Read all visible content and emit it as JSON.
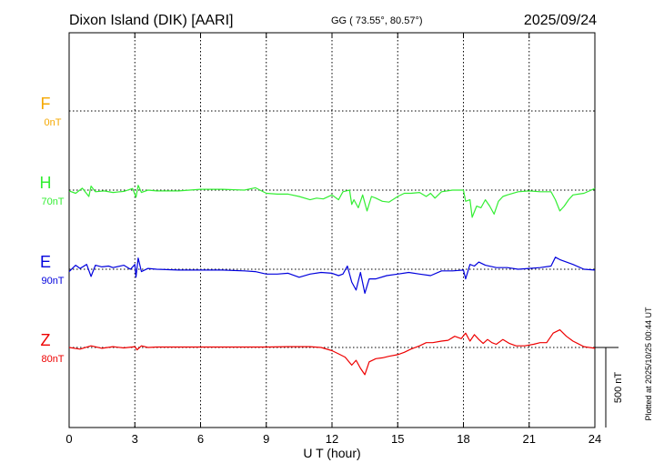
{
  "header": {
    "station": "Dixon Island (DIK)  [AARI]",
    "coords": "GG ( 73.55°,  80.57°)",
    "date": "2025/09/24"
  },
  "footer": {
    "plotted": "Plotted at 2025/10/25 00:44 UT"
  },
  "chart_data": {
    "type": "line",
    "title": "Dixon Island (DIK)  [AARI]",
    "xlabel": "U T (hour)",
    "xlim": [
      0,
      24
    ],
    "xticks": [
      "0",
      "3",
      "6",
      "9",
      "12",
      "15",
      "18",
      "21",
      "24"
    ],
    "grid": true,
    "scale_bar": "500 nT",
    "series": [
      {
        "name": "F",
        "baseline": "0nT",
        "color": "#f5a800",
        "points": []
      },
      {
        "name": "H",
        "baseline": "70nT",
        "color": "#33ee33",
        "points": [
          [
            0,
            -5
          ],
          [
            0.3,
            -20
          ],
          [
            0.6,
            12
          ],
          [
            0.9,
            -40
          ],
          [
            1.0,
            25
          ],
          [
            1.2,
            -10
          ],
          [
            1.6,
            -5
          ],
          [
            2.0,
            -15
          ],
          [
            2.5,
            -8
          ],
          [
            2.9,
            10
          ],
          [
            3.05,
            -45
          ],
          [
            3.15,
            30
          ],
          [
            3.3,
            -15
          ],
          [
            3.6,
            0
          ],
          [
            4.0,
            -5
          ],
          [
            5.0,
            -5
          ],
          [
            6.0,
            5
          ],
          [
            7.0,
            5
          ],
          [
            8.0,
            0
          ],
          [
            8.5,
            15
          ],
          [
            9.0,
            -20
          ],
          [
            9.5,
            -25
          ],
          [
            10.0,
            -25
          ],
          [
            10.5,
            -40
          ],
          [
            11.0,
            -60
          ],
          [
            11.3,
            -50
          ],
          [
            11.6,
            -55
          ],
          [
            12.0,
            -30
          ],
          [
            12.3,
            -60
          ],
          [
            12.5,
            -10
          ],
          [
            12.8,
            0
          ],
          [
            12.9,
            -90
          ],
          [
            13.0,
            -60
          ],
          [
            13.2,
            -110
          ],
          [
            13.4,
            -30
          ],
          [
            13.6,
            -130
          ],
          [
            13.8,
            -40
          ],
          [
            14.0,
            -50
          ],
          [
            14.3,
            -70
          ],
          [
            14.6,
            -75
          ],
          [
            15.0,
            -40
          ],
          [
            15.3,
            -20
          ],
          [
            15.6,
            -20
          ],
          [
            16.0,
            -15
          ],
          [
            16.3,
            -40
          ],
          [
            16.5,
            -20
          ],
          [
            16.7,
            -50
          ],
          [
            17.0,
            -10
          ],
          [
            17.5,
            0
          ],
          [
            18.0,
            0
          ],
          [
            18.1,
            -70
          ],
          [
            18.3,
            -60
          ],
          [
            18.4,
            -170
          ],
          [
            18.6,
            -100
          ],
          [
            18.8,
            -110
          ],
          [
            19.0,
            -60
          ],
          [
            19.2,
            -100
          ],
          [
            19.4,
            -150
          ],
          [
            19.6,
            -70
          ],
          [
            19.8,
            -40
          ],
          [
            20.0,
            -30
          ],
          [
            20.5,
            -10
          ],
          [
            21.0,
            -5
          ],
          [
            21.5,
            -10
          ],
          [
            22.0,
            -10
          ],
          [
            22.2,
            -60
          ],
          [
            22.4,
            -130
          ],
          [
            22.6,
            -100
          ],
          [
            22.8,
            -60
          ],
          [
            23.0,
            -30
          ],
          [
            23.5,
            -20
          ],
          [
            24.0,
            10
          ]
        ]
      },
      {
        "name": "E",
        "baseline": "90nT",
        "color": "#0000dd",
        "points": [
          [
            0,
            -15
          ],
          [
            0.3,
            25
          ],
          [
            0.5,
            5
          ],
          [
            0.8,
            30
          ],
          [
            1.0,
            -45
          ],
          [
            1.2,
            25
          ],
          [
            1.5,
            15
          ],
          [
            1.8,
            20
          ],
          [
            2.0,
            10
          ],
          [
            2.5,
            25
          ],
          [
            2.8,
            0
          ],
          [
            3.0,
            30
          ],
          [
            3.05,
            -50
          ],
          [
            3.15,
            70
          ],
          [
            3.3,
            -15
          ],
          [
            3.6,
            5
          ],
          [
            4.0,
            0
          ],
          [
            5.0,
            -5
          ],
          [
            6.0,
            -5
          ],
          [
            7.0,
            -5
          ],
          [
            8.0,
            -10
          ],
          [
            8.5,
            -15
          ],
          [
            9.0,
            -30
          ],
          [
            9.5,
            -30
          ],
          [
            10.0,
            -25
          ],
          [
            10.5,
            -50
          ],
          [
            11.0,
            -30
          ],
          [
            11.5,
            -20
          ],
          [
            12.0,
            -25
          ],
          [
            12.3,
            -40
          ],
          [
            12.5,
            -30
          ],
          [
            12.7,
            20
          ],
          [
            12.9,
            -80
          ],
          [
            13.1,
            -130
          ],
          [
            13.3,
            -20
          ],
          [
            13.5,
            -150
          ],
          [
            13.7,
            -60
          ],
          [
            14.0,
            -60
          ],
          [
            14.5,
            -40
          ],
          [
            15.0,
            -30
          ],
          [
            15.5,
            -20
          ],
          [
            16.0,
            -30
          ],
          [
            16.5,
            -40
          ],
          [
            17.0,
            -10
          ],
          [
            17.5,
            -10
          ],
          [
            18.0,
            -5
          ],
          [
            18.1,
            -60
          ],
          [
            18.3,
            30
          ],
          [
            18.5,
            20
          ],
          [
            18.7,
            45
          ],
          [
            19.0,
            25
          ],
          [
            19.5,
            10
          ],
          [
            20.0,
            10
          ],
          [
            20.5,
            0
          ],
          [
            21.0,
            5
          ],
          [
            21.5,
            10
          ],
          [
            22.0,
            20
          ],
          [
            22.2,
            75
          ],
          [
            22.4,
            60
          ],
          [
            22.6,
            50
          ],
          [
            23.0,
            30
          ],
          [
            23.5,
            0
          ],
          [
            24.0,
            -5
          ]
        ]
      },
      {
        "name": "Z",
        "baseline": "80nT",
        "color": "#ee0000",
        "points": [
          [
            0,
            0
          ],
          [
            0.5,
            -10
          ],
          [
            1.0,
            10
          ],
          [
            1.5,
            -5
          ],
          [
            2.0,
            5
          ],
          [
            2.5,
            -3
          ],
          [
            3.0,
            5
          ],
          [
            3.1,
            -15
          ],
          [
            3.3,
            10
          ],
          [
            3.6,
            0
          ],
          [
            4.0,
            3
          ],
          [
            5.0,
            3
          ],
          [
            6.0,
            3
          ],
          [
            7.0,
            3
          ],
          [
            8.0,
            3
          ],
          [
            9.0,
            3
          ],
          [
            10.0,
            5
          ],
          [
            11.0,
            5
          ],
          [
            11.5,
            0
          ],
          [
            12.0,
            -20
          ],
          [
            12.3,
            -40
          ],
          [
            12.6,
            -60
          ],
          [
            12.9,
            -110
          ],
          [
            13.1,
            -80
          ],
          [
            13.3,
            -130
          ],
          [
            13.5,
            -170
          ],
          [
            13.7,
            -90
          ],
          [
            14.0,
            -70
          ],
          [
            14.3,
            -65
          ],
          [
            14.6,
            -55
          ],
          [
            15.0,
            -45
          ],
          [
            15.3,
            -30
          ],
          [
            15.6,
            -10
          ],
          [
            16.0,
            10
          ],
          [
            16.3,
            30
          ],
          [
            16.6,
            30
          ],
          [
            17.0,
            40
          ],
          [
            17.3,
            45
          ],
          [
            17.6,
            70
          ],
          [
            17.9,
            55
          ],
          [
            18.1,
            90
          ],
          [
            18.3,
            40
          ],
          [
            18.5,
            80
          ],
          [
            18.7,
            50
          ],
          [
            18.9,
            25
          ],
          [
            19.1,
            50
          ],
          [
            19.3,
            30
          ],
          [
            19.5,
            20
          ],
          [
            19.8,
            50
          ],
          [
            20.1,
            25
          ],
          [
            20.4,
            10
          ],
          [
            20.8,
            10
          ],
          [
            21.2,
            20
          ],
          [
            21.5,
            30
          ],
          [
            21.8,
            30
          ],
          [
            22.1,
            90
          ],
          [
            22.4,
            110
          ],
          [
            22.7,
            70
          ],
          [
            23.0,
            40
          ],
          [
            23.5,
            5
          ],
          [
            24.0,
            -5
          ]
        ]
      }
    ]
  }
}
